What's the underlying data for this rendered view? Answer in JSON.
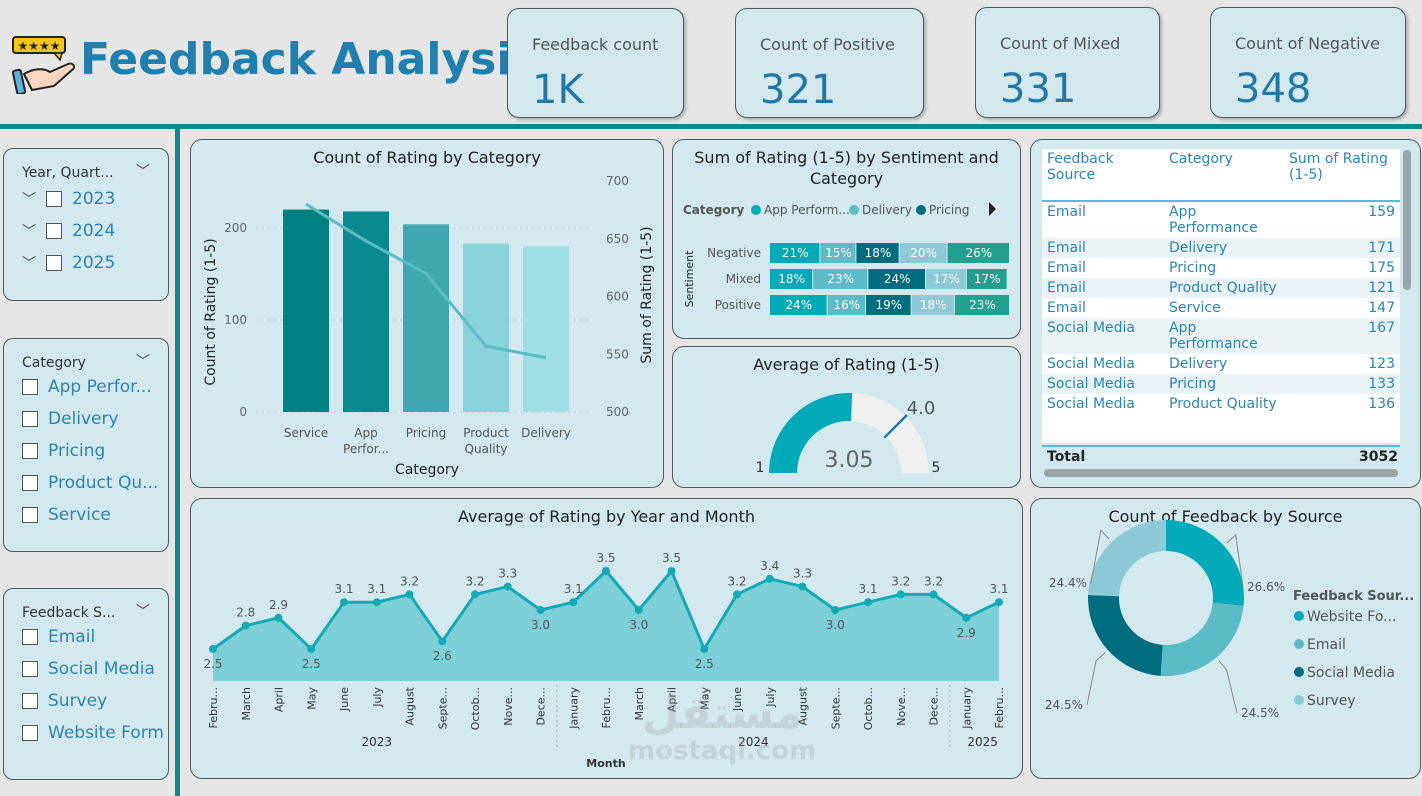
{
  "header": {
    "title": "Feedback Analysis",
    "logo": "hand-with-rating-stars"
  },
  "kpis": [
    {
      "label": "Feedback count",
      "value": "1K"
    },
    {
      "label": "Count of Positive",
      "value": "321"
    },
    {
      "label": "Count of Mixed",
      "value": "331"
    },
    {
      "label": "Count of Negative",
      "value": "348"
    }
  ],
  "slicers": {
    "year": {
      "title": "Year, Quart...",
      "items": [
        "2023",
        "2024",
        "2025"
      ]
    },
    "category": {
      "title": "Category",
      "items": [
        "App Perfor...",
        "Delivery",
        "Pricing",
        "Product Qu...",
        "Service"
      ]
    },
    "source": {
      "title": "Feedback S...",
      "items": [
        "Email",
        "Social Media",
        "Survey",
        "Website Form"
      ]
    }
  },
  "colors": {
    "accent": "#0a8a8a",
    "kpi_value": "#1f78a8",
    "panel": "#d3e9ed"
  },
  "watermark": {
    "arabic": "مستقل",
    "latin": "mostaql.com"
  },
  "chart_data": [
    {
      "id": "count_by_category",
      "type": "bar",
      "title": "Count of Rating by Category",
      "xlabel": "Category",
      "ylabel": "Count of Rating (1-5)",
      "y2label": "Sum of Rating (1-5)",
      "categories": [
        "Service",
        "App Perfor...",
        "Pricing",
        "Product Quality",
        "Delivery"
      ],
      "series": [
        {
          "name": "Count of Rating (1-5)",
          "type": "bar",
          "values": [
            220,
            218,
            204,
            183,
            180
          ]
        },
        {
          "name": "Sum of Rating (1-5)",
          "type": "line",
          "axis": "right",
          "values": [
            680,
            648,
            620,
            557,
            547
          ]
        }
      ],
      "yticks": [
        0,
        100,
        200
      ],
      "ylim": [
        0,
        250
      ],
      "y2ticks": [
        500,
        550,
        600,
        650,
        700
      ],
      "y2lim": [
        500,
        700
      ],
      "bar_colors": [
        "#008080",
        "#098a8c",
        "#3fa8ae",
        "#87d3d8",
        "#9ddfe4"
      ],
      "line_color": "#5bbcc5"
    },
    {
      "id": "sentiment_category",
      "type": "bar",
      "orientation": "horizontal-100%-stacked",
      "title": "Sum of Rating (1-5) by Sentiment and Category",
      "legend_title": "Category",
      "legend": [
        "App Perform...",
        "Delivery",
        "Pricing"
      ],
      "ylabel": "Sentiment",
      "categories": [
        "Negative",
        "Mixed",
        "Positive"
      ],
      "series": [
        {
          "name": "App Performance",
          "color": "#00aab8",
          "values": [
            21,
            18,
            24
          ]
        },
        {
          "name": "Delivery",
          "color": "#5bbcc5",
          "values": [
            15,
            23,
            16
          ]
        },
        {
          "name": "Pricing",
          "color": "#006c80",
          "values": [
            18,
            24,
            19
          ]
        },
        {
          "name": "Product Quality",
          "color": "#8ccbd6",
          "values": [
            20,
            17,
            18
          ]
        },
        {
          "name": "Service",
          "color": "#22a08e",
          "values": [
            26,
            17,
            23
          ]
        }
      ]
    },
    {
      "id": "avg_rating_gauge",
      "type": "gauge",
      "title": "Average of Rating (1-5)",
      "value": 3.05,
      "value_label": "3.05",
      "target": 4.0,
      "target_label": "4.0",
      "min": 1,
      "max": 5,
      "min_label": "1",
      "max_label": "5",
      "color": "#00aab8"
    },
    {
      "id": "avg_by_month",
      "type": "area",
      "title": "Average of Rating by Year and Month",
      "xlabel": "Month",
      "x": [
        "Febru...",
        "March",
        "April",
        "May",
        "June",
        "July",
        "August",
        "Septe...",
        "Octob...",
        "Nove...",
        "Dece...",
        "January",
        "Febru...",
        "March",
        "April",
        "May",
        "June",
        "July",
        "August",
        "Septe...",
        "Octob...",
        "Nove...",
        "Dece...",
        "January",
        "Febru..."
      ],
      "years": [
        {
          "label": "2023",
          "count": 11
        },
        {
          "label": "2024",
          "count": 12
        },
        {
          "label": "2025",
          "count": 2
        }
      ],
      "values": [
        2.5,
        2.8,
        2.9,
        2.5,
        3.1,
        3.1,
        3.2,
        2.6,
        3.2,
        3.3,
        3.0,
        3.1,
        3.5,
        3.0,
        3.5,
        2.5,
        3.2,
        3.4,
        3.3,
        3.0,
        3.1,
        3.2,
        3.2,
        2.9,
        3.1
      ],
      "labels": [
        "2.5",
        "2.8",
        "2.9",
        "2.5",
        "3.1",
        "3.1",
        "3.2",
        "2.6",
        "3.2",
        "3.3",
        "3.0",
        "3.1",
        "3.5",
        "3.0",
        "3.5",
        "2.5",
        "3.2",
        "3.4",
        "3.3",
        "3.0",
        "3.1",
        "3.2",
        "3.2",
        "2.9",
        "3.1"
      ],
      "line_color": "#14a9b5",
      "fill_color": "#7dd0d6"
    },
    {
      "id": "feedback_by_source",
      "type": "pie",
      "donut": true,
      "title": "Count of Feedback by Source",
      "legend_title": "Feedback Sour...",
      "categories": [
        "Website Fo...",
        "Email",
        "Social Media",
        "Survey"
      ],
      "values": [
        26.6,
        24.5,
        24.5,
        24.4
      ],
      "labels": [
        "26.6%",
        "24.5%",
        "24.5%",
        "24.4%"
      ],
      "colors": [
        "#00aab8",
        "#5bbcc5",
        "#006c80",
        "#8ccbd6"
      ]
    }
  ],
  "table": {
    "columns": [
      "Feedback Source",
      "Category",
      "Sum of Rating (1-5)"
    ],
    "rows": [
      [
        "Email",
        "App Performance",
        "159"
      ],
      [
        "Email",
        "Delivery",
        "171"
      ],
      [
        "Email",
        "Pricing",
        "175"
      ],
      [
        "Email",
        "Product Quality",
        "121"
      ],
      [
        "Email",
        "Service",
        "147"
      ],
      [
        "Social Media",
        "App Performance",
        "167"
      ],
      [
        "Social Media",
        "Delivery",
        "123"
      ],
      [
        "Social Media",
        "Pricing",
        "133"
      ],
      [
        "Social Media",
        "Product Quality",
        "136"
      ]
    ],
    "total_label": "Total",
    "total": "3052"
  }
}
